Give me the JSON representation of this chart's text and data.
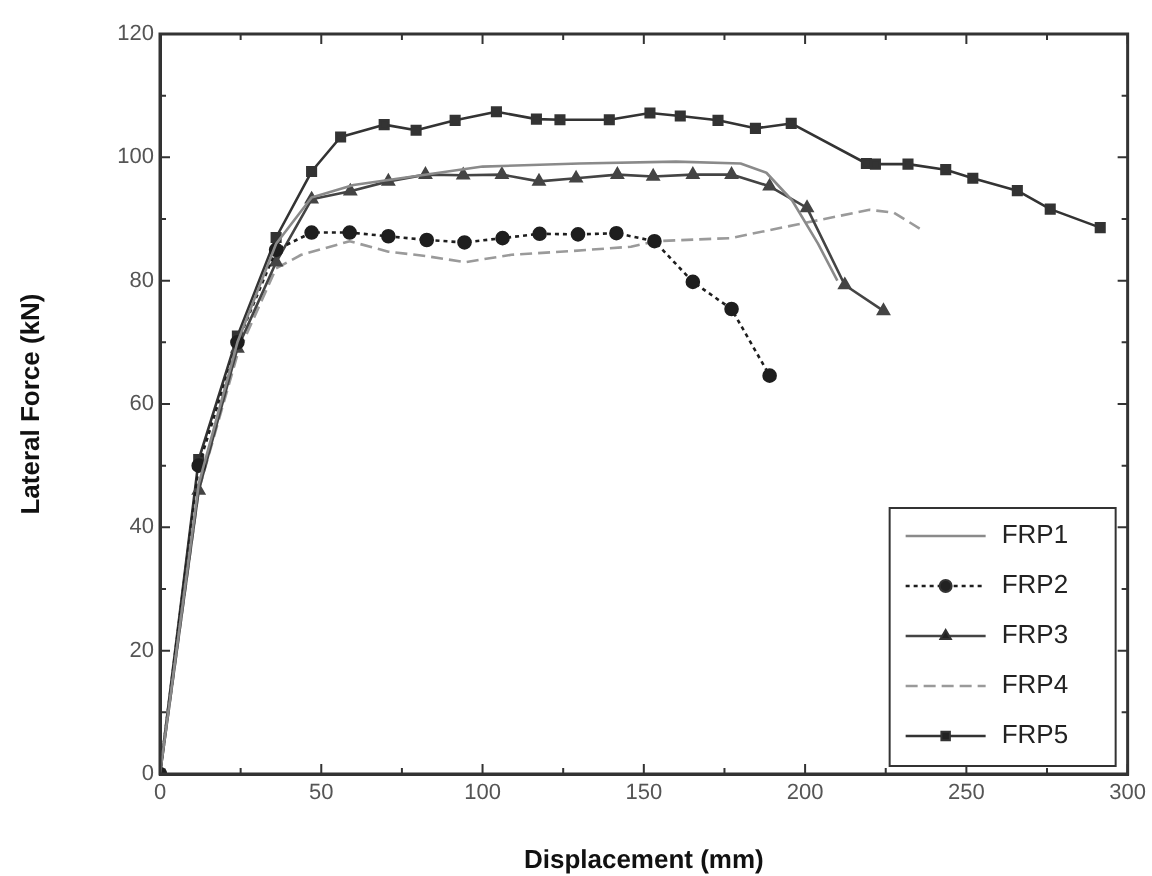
{
  "chart_data": {
    "type": "line",
    "xlabel": "Displacement (mm)",
    "ylabel": "Lateral Force (kN)",
    "xlim": [
      0,
      300
    ],
    "xticks": [
      0,
      {
        "value": 25,
        "label": null
      },
      50,
      {
        "value": 75,
        "label": null
      },
      100,
      {
        "value": 125,
        "label": null
      },
      150,
      {
        "value": 175,
        "label": null
      },
      200,
      {
        "value": 225,
        "label": null
      },
      250,
      {
        "value": 275,
        "label": null
      },
      300
    ],
    "ylim": [
      0,
      120
    ],
    "yticks": [
      0,
      {
        "value": 10,
        "label": null
      },
      20,
      {
        "value": 30,
        "label": null
      },
      40,
      {
        "value": 50,
        "label": null
      },
      60,
      {
        "value": 70,
        "label": null
      },
      80,
      {
        "value": 90,
        "label": null
      },
      100,
      {
        "value": 110,
        "label": null
      },
      120
    ],
    "grid": false,
    "legend": "bottom right",
    "series": [
      {
        "name": "FRP1",
        "color": "#8a8a8a",
        "marker": "none",
        "line_style": "solid",
        "x": [
          0,
          12,
          24,
          36,
          47,
          60,
          80,
          100,
          130,
          160,
          180,
          188,
          196,
          204,
          210
        ],
        "values": [
          0,
          47,
          70,
          86,
          93.5,
          95.5,
          97,
          98.5,
          99,
          99.3,
          99,
          97.5,
          93,
          86,
          80
        ]
      },
      {
        "name": "FRP2",
        "color": "#1e1e1e",
        "marker": "circle",
        "line_style": "dotted",
        "x": [
          0,
          12,
          24,
          36,
          47,
          58.8,
          70.8,
          82.7,
          94.4,
          106.2,
          117.7,
          129.6,
          141.5,
          153.3,
          165.2,
          177.2,
          189
        ],
        "values": [
          0,
          50,
          70,
          85,
          87.8,
          87.8,
          87.2,
          86.6,
          86.2,
          86.9,
          87.6,
          87.5,
          87.7,
          86.4,
          79.8,
          75.4,
          64.6
        ]
      },
      {
        "name": "FRP3",
        "color": "#444444",
        "marker": "triangle",
        "line_style": "solid",
        "x": [
          0,
          12,
          24,
          36,
          47,
          59,
          70.8,
          82.3,
          94,
          106,
          117.5,
          129,
          141.8,
          152.9,
          165.2,
          177.2,
          189,
          200.6,
          212.3,
          224.3
        ],
        "values": [
          0,
          46,
          69,
          83,
          93.2,
          94.5,
          96.1,
          97.2,
          97.1,
          97.2,
          96.1,
          96.6,
          97.2,
          96.9,
          97.2,
          97.2,
          95.3,
          91.8,
          79.3,
          75.1
        ]
      },
      {
        "name": "FRP4",
        "color": "#9a9a9a",
        "marker": "none",
        "line_style": "dashed",
        "x": [
          0,
          12,
          24,
          36,
          43.8,
          58.8,
          70.8,
          82.3,
          94.6,
          109,
          127.5,
          146,
          153.7,
          176.9,
          197.5,
          220,
          227.6,
          236
        ],
        "values": [
          0,
          46,
          68,
          82,
          84.2,
          86.4,
          84.7,
          84,
          83,
          84.2,
          84.8,
          85.5,
          86.4,
          86.9,
          89.1,
          91.5,
          91,
          88.3
        ]
      },
      {
        "name": "FRP5",
        "color": "#333333",
        "marker": "square",
        "line_style": "solid",
        "x": [
          0,
          12,
          24,
          36,
          47,
          56,
          69.5,
          79.4,
          91.5,
          104.3,
          116.7,
          124,
          139.3,
          151.9,
          161.3,
          173,
          184.6,
          195.7,
          219,
          221.8,
          231.9,
          243.6,
          252,
          265.8,
          276,
          291.5
        ],
        "values": [
          0,
          51,
          71,
          87,
          97.7,
          103.3,
          105.3,
          104.4,
          106,
          107.4,
          106.2,
          106.1,
          106.1,
          107.2,
          106.7,
          106,
          104.7,
          105.5,
          99,
          98.9,
          98.9,
          98,
          96.6,
          94.6,
          91.6,
          88.6
        ]
      }
    ]
  }
}
